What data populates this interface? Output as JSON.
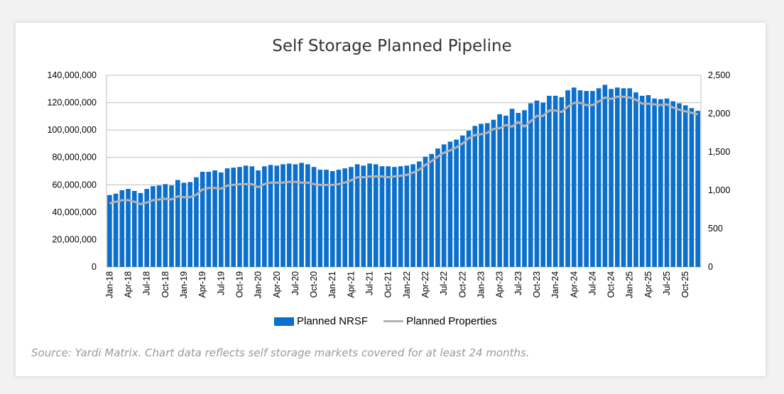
{
  "chart_data": {
    "type": "bar",
    "title": "Self Storage Planned Pipeline",
    "source": "Source: Yardi Matrix. Chart data reflects self storage markets covered for at least 24 months.",
    "colors": {
      "bars": "#0b6fcc",
      "line": "#b3b3b3"
    },
    "grid": true,
    "legend_position": "bottom",
    "y_left": {
      "range": [
        0,
        140000000
      ],
      "ticks": [
        "0",
        "20,000,000",
        "40,000,000",
        "60,000,000",
        "80,000,000",
        "100,000,000",
        "120,000,000",
        "140,000,000"
      ]
    },
    "y_right": {
      "range": [
        0,
        2500
      ],
      "ticks": [
        "0",
        "500",
        "1,000",
        "1,500",
        "2,000",
        "2,500"
      ]
    },
    "tick_labels": [
      "Jan-18",
      "Apr-18",
      "Jul-18",
      "Oct-18",
      "Jan-19",
      "Apr-19",
      "Jul-19",
      "Oct-19",
      "Jan-20",
      "Apr-20",
      "Jul-20",
      "Oct-20",
      "Jan-21",
      "Apr-21",
      "Jul-21",
      "Oct-21",
      "Jan-22",
      "Apr-22",
      "Jul-22",
      "Oct-22",
      "Jan-23",
      "Apr-23",
      "Jul-23",
      "Oct-23",
      "Jan-24",
      "Apr-24",
      "Jul-24",
      "Oct-24",
      "Jan-25",
      "Apr-25",
      "Jul-25",
      "Oct-25"
    ],
    "x_start": "Jan-18",
    "x_end": "Dec-25",
    "series": [
      {
        "name": "Planned NRSF",
        "type": "bar",
        "axis": "left",
        "values_millions": [
          52.5,
          53.5,
          56,
          57,
          55.5,
          54,
          57,
          59,
          59.5,
          60.5,
          59.5,
          63.5,
          61.5,
          62,
          65.5,
          69.5,
          69.5,
          70.5,
          69,
          72,
          72.5,
          73,
          74,
          73.5,
          70.5,
          73.5,
          74.5,
          74,
          75,
          75.5,
          75,
          76,
          75,
          73,
          71,
          71,
          70,
          71,
          72,
          73,
          75,
          74,
          75.5,
          75,
          73.5,
          73.5,
          73,
          73.5,
          74,
          75,
          77,
          80.5,
          82.5,
          86.5,
          89.5,
          91.5,
          93,
          96,
          99.5,
          103,
          104.5,
          105,
          107.5,
          111.5,
          110.5,
          115.5,
          112.5,
          114.5,
          119.5,
          121.5,
          120,
          125,
          125,
          124,
          129,
          131,
          129,
          128.5,
          128.5,
          130.5,
          133,
          130,
          131,
          130.5,
          130.5,
          127.5,
          125,
          125.5,
          123,
          122.5,
          123,
          121,
          119.5,
          118,
          116,
          114
        ]
      },
      {
        "name": "Planned Properties",
        "type": "line",
        "axis": "right",
        "values": [
          830,
          850,
          870,
          870,
          850,
          820,
          840,
          870,
          880,
          890,
          880,
          920,
          910,
          910,
          940,
          1010,
          1030,
          1030,
          1020,
          1060,
          1070,
          1080,
          1080,
          1080,
          1040,
          1080,
          1100,
          1100,
          1100,
          1110,
          1110,
          1100,
          1100,
          1080,
          1070,
          1070,
          1070,
          1080,
          1100,
          1130,
          1170,
          1170,
          1180,
          1180,
          1180,
          1170,
          1180,
          1190,
          1200,
          1230,
          1270,
          1330,
          1380,
          1440,
          1490,
          1520,
          1560,
          1610,
          1680,
          1720,
          1730,
          1750,
          1800,
          1810,
          1850,
          1830,
          1890,
          1830,
          1900,
          1970,
          1970,
          2040,
          2040,
          2020,
          2090,
          2140,
          2140,
          2110,
          2110,
          2160,
          2210,
          2190,
          2220,
          2220,
          2210,
          2180,
          2130,
          2130,
          2120,
          2110,
          2120,
          2080,
          2050,
          2030,
          2010,
          1990
        ]
      }
    ]
  }
}
